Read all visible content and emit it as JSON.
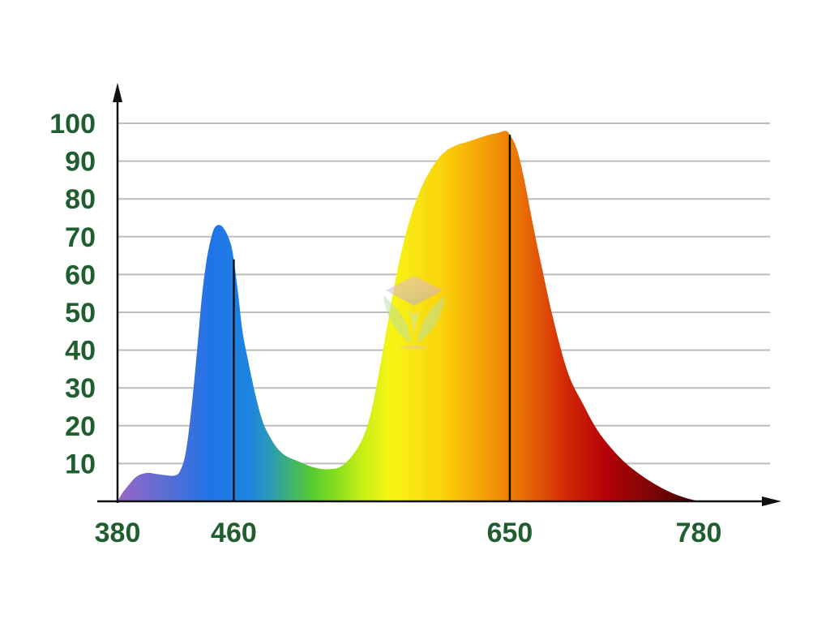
{
  "chart_data": {
    "type": "area",
    "title": "",
    "xlabel": "",
    "ylabel": "",
    "xlim": [
      380,
      780
    ],
    "ylim": [
      0,
      100
    ],
    "x_ticks": [
      380,
      460,
      650,
      780
    ],
    "y_ticks": [
      10,
      20,
      30,
      40,
      50,
      60,
      70,
      80,
      90,
      100
    ],
    "grid": "horizontal",
    "legend": "none",
    "fill": "visible-spectrum-gradient",
    "peak_markers": [
      460,
      650
    ],
    "series": [
      {
        "x": [
          380,
          383,
          387,
          393,
          400,
          407,
          413,
          419,
          423,
          427,
          431,
          435,
          438,
          441,
          444,
          447,
          451,
          455,
          458,
          460,
          463,
          466,
          470,
          475,
          480,
          485,
          490,
          496,
          505,
          515,
          525,
          535,
          545,
          552,
          558,
          565,
          572,
          580,
          588,
          596,
          604,
          612,
          620,
          628,
          636,
          642,
          647,
          650,
          655,
          660,
          666,
          672,
          680,
          690,
          700,
          710,
          720,
          730,
          740,
          750,
          760,
          770,
          780
        ],
        "y": [
          0,
          2,
          4,
          6.5,
          7.5,
          7.2,
          6.9,
          6.8,
          8,
          13,
          25,
          41,
          54,
          63,
          69,
          72.5,
          73,
          71,
          68,
          64,
          55,
          45,
          37,
          28,
          21,
          17,
          14,
          12,
          10.5,
          9,
          8.5,
          9.5,
          14,
          20,
          30,
          45,
          60,
          73,
          82,
          88,
          92,
          94,
          95,
          96,
          97,
          97.5,
          98,
          97,
          93,
          85,
          73,
          62,
          48,
          34,
          26,
          19,
          14,
          10,
          7,
          4.5,
          2.5,
          1,
          0
        ]
      }
    ],
    "colors": {
      "tick_labels": "#1f5f2f",
      "axis": "#111111",
      "grid": "#bdbdbd",
      "marker": "#111111"
    }
  },
  "watermark": {
    "icon": "leaf-logo-icon"
  }
}
